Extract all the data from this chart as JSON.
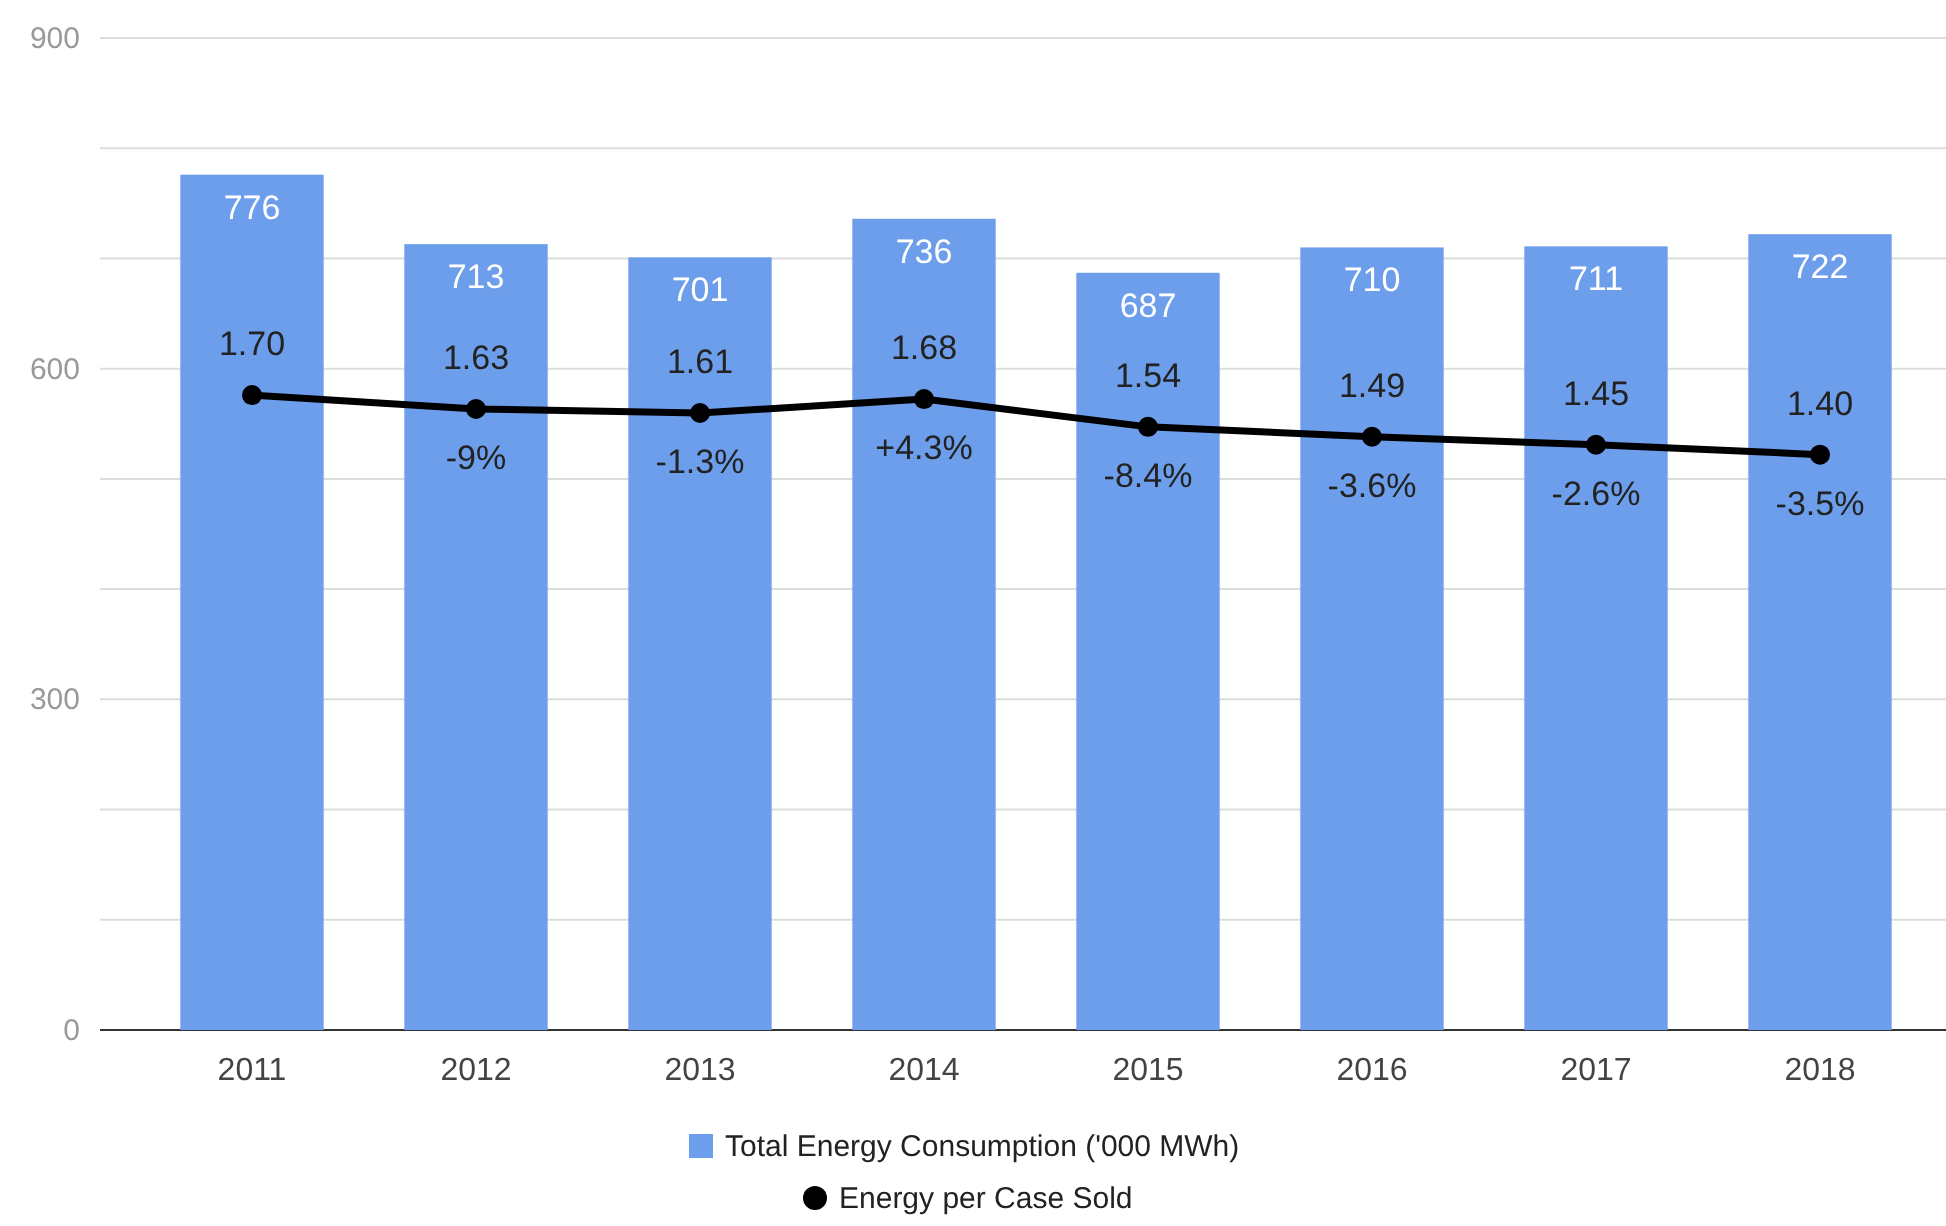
{
  "chart_data": {
    "type": "bar",
    "categories": [
      "2011",
      "2012",
      "2013",
      "2014",
      "2015",
      "2016",
      "2017",
      "2018"
    ],
    "series": [
      {
        "name": "Total Energy Consumption ('000 MWh)",
        "color": "#6d9eeb",
        "values": [
          776,
          713,
          701,
          736,
          687,
          710,
          711,
          722
        ]
      },
      {
        "name": "Energy per Case Sold",
        "type": "line",
        "axis": "y2",
        "color": "#000000",
        "marker": "circle",
        "values": [
          1.7,
          1.63,
          1.61,
          1.68,
          1.54,
          1.49,
          1.45,
          1.4
        ],
        "value_labels": [
          "1.70",
          "1.63",
          "1.61",
          "1.68",
          "1.54",
          "1.49",
          "1.45",
          "1.40"
        ]
      }
    ],
    "ylim": [
      0,
      900
    ],
    "yticks": [
      0,
      {
        "value": 100,
        "label": null
      },
      {
        "value": 200,
        "label": null
      },
      300,
      {
        "value": 400,
        "label": null
      },
      {
        "value": 500,
        "label": null
      },
      600,
      {
        "value": 700,
        "label": null
      },
      {
        "value": 800,
        "label": null
      },
      900
    ],
    "y2lim": [
      -1.5,
      3.5
    ],
    "tick_labels": "xy",
    "grid": "y",
    "legend": "bottom",
    "data_labels": true,
    "annotations": [
      "-9%",
      "-1.3%",
      "+4.3%",
      "-8.4%",
      "-3.6%",
      "-2.6%",
      "-3.5%"
    ]
  }
}
